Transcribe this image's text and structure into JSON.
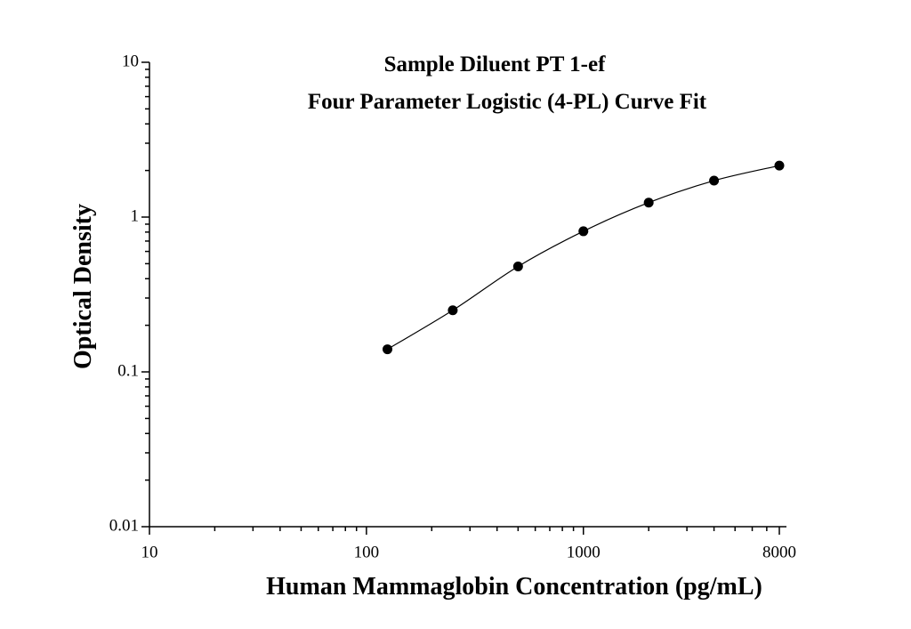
{
  "chart_data": {
    "type": "scatter",
    "title": [
      "Sample Diluent PT 1-ef",
      "Four Parameter Logistic (4-PL) Curve Fit"
    ],
    "xlabel": "Human Mammaglobin Concentration (pg/mL)",
    "ylabel": "Optical Density",
    "xscale": "log",
    "yscale": "log",
    "x": [
      125,
      250,
      500,
      1000,
      2000,
      4000,
      8000
    ],
    "values": [
      0.14,
      0.25,
      0.48,
      0.81,
      1.24,
      1.72,
      2.15
    ],
    "color": "#000000",
    "fit_curve": true,
    "xlim": [
      10,
      8000
    ],
    "ylim": [
      0.01,
      10
    ],
    "xticks": [
      10,
      100,
      1000,
      8000
    ],
    "yticks": [
      0.01,
      0.1,
      1,
      10
    ],
    "xminorticks": [
      20,
      30,
      40,
      50,
      60,
      70,
      80,
      90,
      200,
      300,
      400,
      500,
      600,
      700,
      800,
      900,
      2000,
      3000,
      4000,
      5000,
      6000,
      7000
    ],
    "yminorticks": [
      0.02,
      0.03,
      0.04,
      0.05,
      0.06,
      0.07,
      0.08,
      0.09,
      0.2,
      0.3,
      0.4,
      0.5,
      0.6,
      0.7,
      0.8,
      0.9,
      2,
      3,
      4,
      5,
      6,
      7,
      8,
      9
    ]
  }
}
